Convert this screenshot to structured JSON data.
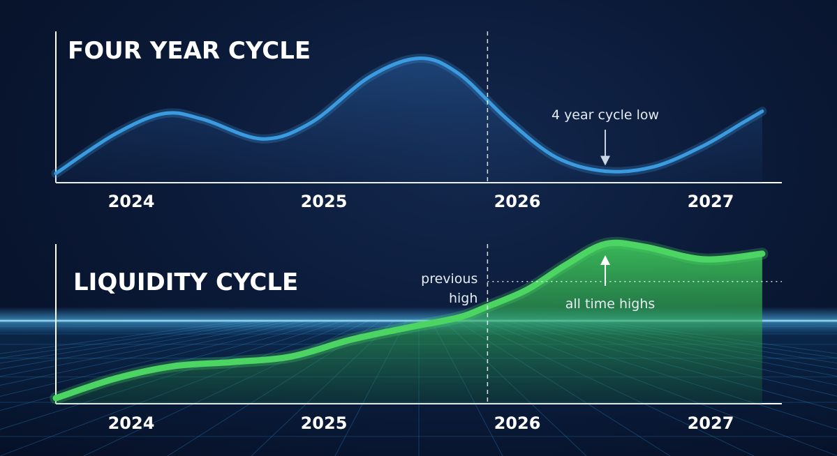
{
  "chart_data": [
    {
      "type": "line",
      "title": "FOUR YEAR CYCLE",
      "x_ticks": [
        "2024",
        "2025",
        "2026",
        "2027"
      ],
      "x": [
        2023.7,
        2024.0,
        2024.25,
        2024.45,
        2024.75,
        2025.0,
        2025.3,
        2025.55,
        2025.75,
        2026.0,
        2026.25,
        2026.5,
        2026.75,
        2027.0,
        2027.2,
        2027.3
      ],
      "series": [
        {
          "values": [
            0.08,
            0.42,
            0.6,
            0.55,
            0.38,
            0.52,
            0.92,
            1.08,
            0.95,
            0.55,
            0.22,
            0.1,
            0.14,
            0.32,
            0.52,
            0.62
          ],
          "color": "#3a9be0"
        }
      ],
      "xlim": [
        2023.7,
        2027.4
      ],
      "ylim": [
        0,
        1.15
      ],
      "annotations": [
        {
          "text": "4 year cycle low",
          "x": 2026.5,
          "y": 0.1
        }
      ],
      "reference_line": {
        "x": 2025.9,
        "style": "dashed"
      }
    },
    {
      "type": "area",
      "title": "LIQUIDITY CYCLE",
      "x_ticks": [
        "2024",
        "2025",
        "2026",
        "2027"
      ],
      "x": [
        2023.7,
        2024.0,
        2024.3,
        2024.6,
        2024.9,
        2025.2,
        2025.5,
        2025.75,
        2025.9,
        2026.1,
        2026.3,
        2026.5,
        2026.7,
        2027.0,
        2027.3
      ],
      "series": [
        {
          "values": [
            0.04,
            0.18,
            0.27,
            0.3,
            0.34,
            0.46,
            0.55,
            0.62,
            0.7,
            0.82,
            1.0,
            1.15,
            1.13,
            1.04,
            1.08
          ],
          "color": "#4cd563"
        }
      ],
      "xlim": [
        2023.7,
        2027.4
      ],
      "ylim": [
        0,
        1.2
      ],
      "annotations": [
        {
          "text": "all time highs",
          "x": 2026.5,
          "y": 1.15
        }
      ],
      "reference_level": {
        "label_lines": [
          "previous",
          "high"
        ],
        "y": 0.88
      },
      "reference_line": {
        "x": 2025.9,
        "style": "dashed"
      }
    }
  ]
}
